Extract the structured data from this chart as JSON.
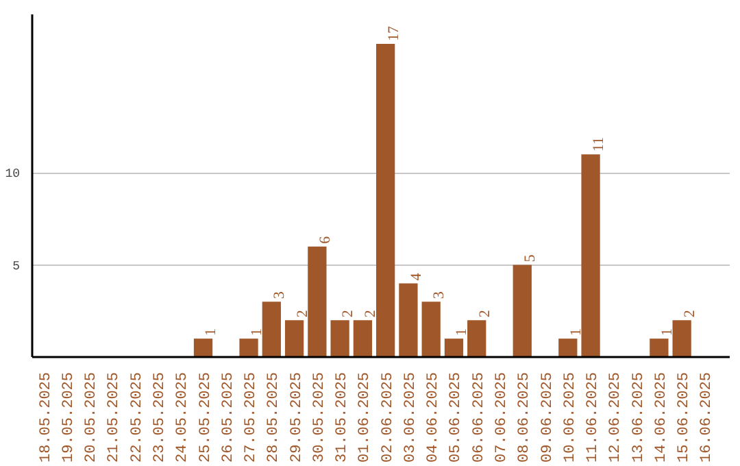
{
  "chart_data": {
    "type": "bar",
    "categories": [
      "18.05.2025",
      "19.05.2025",
      "20.05.2025",
      "21.05.2025",
      "22.05.2025",
      "23.05.2025",
      "24.05.2025",
      "25.05.2025",
      "26.05.2025",
      "27.05.2025",
      "28.05.2025",
      "29.05.2025",
      "30.05.2025",
      "31.05.2025",
      "01.06.2025",
      "02.06.2025",
      "03.06.2025",
      "04.06.2025",
      "05.06.2025",
      "06.06.2025",
      "07.06.2025",
      "08.06.2025",
      "09.06.2025",
      "10.06.2025",
      "11.06.2025",
      "12.06.2025",
      "13.06.2025",
      "14.06.2025",
      "15.06.2025",
      "16.06.2025"
    ],
    "values": [
      0,
      0,
      0,
      0,
      0,
      0,
      0,
      1,
      0,
      1,
      3,
      2,
      6,
      2,
      2,
      17,
      4,
      3,
      1,
      2,
      0,
      5,
      0,
      1,
      11,
      0,
      0,
      1,
      2,
      0
    ],
    "value_labels": [
      null,
      null,
      null,
      null,
      null,
      null,
      null,
      "1",
      null,
      "1",
      "3",
      "2",
      "6",
      "2",
      "2",
      "17",
      "4",
      "3",
      "1",
      "2",
      null,
      "5",
      null,
      "1",
      "11",
      null,
      null,
      "1",
      "2",
      null
    ],
    "color": "#a0582a",
    "ylim": [
      0,
      18.6
    ],
    "yticks": [
      5,
      10
    ],
    "grid": "y"
  }
}
